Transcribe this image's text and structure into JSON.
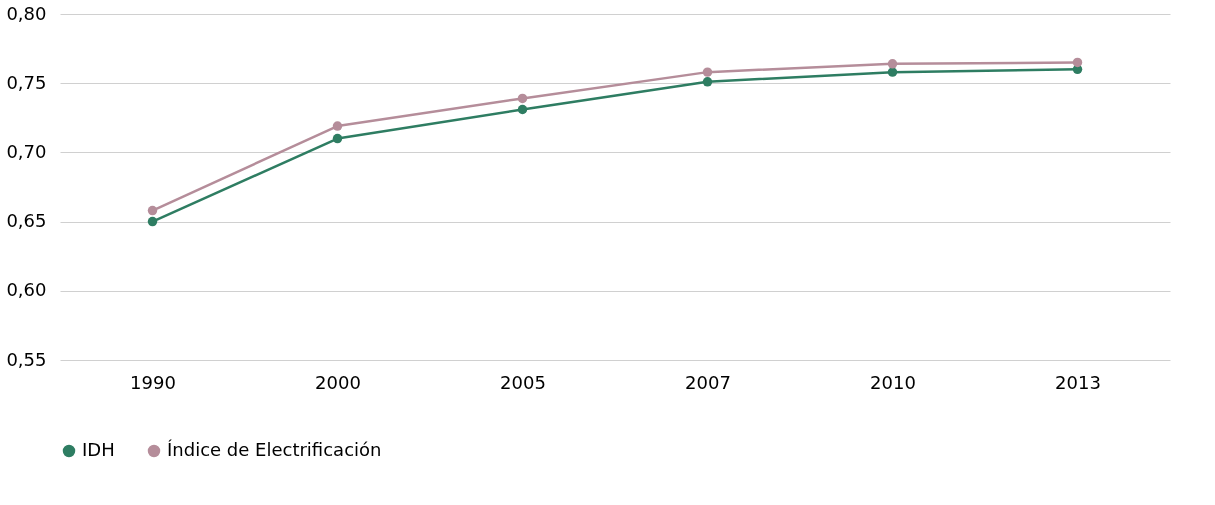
{
  "chart_data": {
    "type": "line",
    "categories": [
      "1990",
      "2000",
      "2005",
      "2007",
      "2010",
      "2013"
    ],
    "series": [
      {
        "name": "IDH",
        "color": "#2e7d62",
        "values": [
          0.65,
          0.71,
          0.731,
          0.751,
          0.758,
          0.76
        ]
      },
      {
        "name": "Índice de Electrificación",
        "color": "#b58d9a",
        "values": [
          0.658,
          0.719,
          0.739,
          0.758,
          0.764,
          0.765
        ]
      }
    ],
    "ylim": [
      0.55,
      0.8
    ],
    "yticks": [
      {
        "value": 0.55,
        "label": "0,55"
      },
      {
        "value": 0.6,
        "label": "0,60"
      },
      {
        "value": 0.65,
        "label": "0,65"
      },
      {
        "value": 0.7,
        "label": "0,70"
      },
      {
        "value": 0.75,
        "label": "0,75"
      },
      {
        "value": 0.8,
        "label": "0,80"
      }
    ],
    "grid": "y",
    "legend": "bottom left",
    "marker": "circle",
    "line_style": "solid"
  }
}
